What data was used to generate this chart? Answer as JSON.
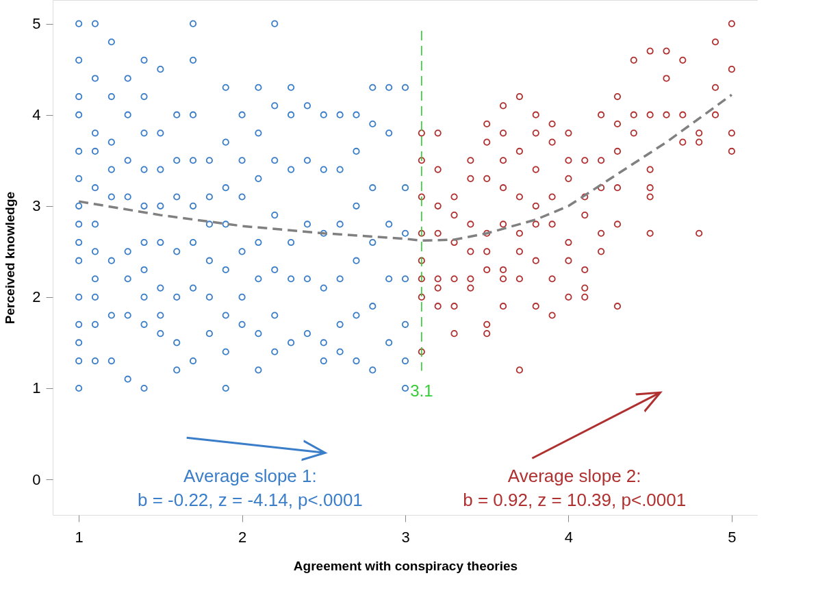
{
  "chart_data": {
    "type": "scatter",
    "xlabel": "Agreement with conspiracy theories",
    "ylabel": "Perceived knowledge",
    "xlim": [
      0.84,
      5.16
    ],
    "ylim": [
      -0.39,
      5.26
    ],
    "xticks": [
      1,
      2,
      3,
      4,
      5
    ],
    "yticks": [
      0,
      1,
      2,
      3,
      4,
      5
    ],
    "marker": "circle",
    "series": [
      {
        "color": "#3a7dc9",
        "x": [
          1,
          1,
          1,
          1,
          1,
          1,
          1,
          1,
          1,
          1,
          1,
          1,
          1,
          1,
          1,
          1.1,
          1.1,
          1.1,
          1.1,
          1.1,
          1.1,
          1.1,
          1.1,
          1.1,
          1.1,
          1.1,
          1.2,
          1.2,
          1.2,
          1.2,
          1.2,
          1.2,
          1.2,
          1.2,
          1.3,
          1.3,
          1.3,
          1.3,
          1.3,
          1.3,
          1.3,
          1.3,
          1.4,
          1.4,
          1.4,
          1.4,
          1.4,
          1.4,
          1.4,
          1.4,
          1.4,
          1.4,
          1.5,
          1.5,
          1.5,
          1.5,
          1.5,
          1.5,
          1.5,
          1.5,
          1.6,
          1.6,
          1.6,
          1.6,
          1.6,
          1.6,
          1.6,
          1.7,
          1.7,
          1.7,
          1.7,
          1.7,
          1.7,
          1.7,
          1.7,
          1.8,
          1.8,
          1.8,
          1.8,
          1.8,
          1.8,
          1.9,
          1.9,
          1.9,
          1.9,
          1.9,
          1.9,
          1.9,
          1.9,
          2,
          2,
          2,
          2,
          2,
          2,
          2.1,
          2.1,
          2.1,
          2.1,
          2.1,
          2.1,
          2.1,
          2.2,
          2.2,
          2.2,
          2.2,
          2.2,
          2.2,
          2.2,
          2.3,
          2.3,
          2.3,
          2.3,
          2.3,
          2.3,
          2.4,
          2.4,
          2.4,
          2.4,
          2.4,
          2.5,
          2.5,
          2.5,
          2.5,
          2.5,
          2.5,
          2.6,
          2.6,
          2.6,
          2.6,
          2.6,
          2.6,
          2.7,
          2.7,
          2.7,
          2.7,
          2.7,
          2.7,
          2.8,
          2.8,
          2.8,
          2.8,
          2.8,
          2.8,
          2.9,
          2.9,
          2.9,
          2.9,
          2.9,
          3,
          3,
          3,
          3,
          3,
          3,
          3
        ],
        "values": [
          5,
          4.6,
          4.2,
          4.0,
          3.6,
          3.3,
          3.0,
          2.8,
          2.6,
          2.4,
          2.0,
          1.7,
          1.5,
          1.3,
          1.0,
          5,
          4.4,
          3.8,
          3.6,
          3.2,
          2.8,
          2.5,
          2.2,
          2.0,
          1.7,
          1.3,
          4.8,
          4.2,
          3.7,
          3.4,
          3.1,
          2.4,
          1.8,
          1.3,
          4.4,
          4.0,
          3.5,
          3.1,
          2.5,
          2.2,
          1.8,
          1.1,
          4.6,
          4.2,
          3.8,
          3.4,
          3.0,
          2.6,
          2.3,
          2.0,
          1.7,
          1.0,
          4.5,
          3.8,
          3.4,
          3.0,
          2.6,
          2.1,
          1.8,
          1.6,
          4.0,
          3.5,
          3.1,
          2.5,
          2.0,
          1.5,
          1.2,
          5.0,
          4.6,
          4.0,
          3.5,
          3.0,
          2.6,
          2.1,
          1.3,
          3.5,
          3.1,
          2.8,
          2.4,
          2.0,
          1.6,
          4.3,
          3.7,
          3.2,
          2.8,
          2.3,
          1.8,
          1.4,
          1.0,
          4.0,
          3.5,
          3.1,
          2.5,
          2.0,
          1.7,
          4.3,
          3.8,
          3.3,
          2.6,
          2.2,
          1.6,
          1.2,
          5.0,
          4.1,
          3.5,
          2.9,
          2.3,
          1.8,
          1.4,
          4.3,
          4.0,
          3.4,
          2.6,
          2.2,
          1.5,
          4.1,
          3.5,
          2.8,
          2.2,
          1.6,
          4.0,
          3.4,
          2.7,
          2.1,
          1.5,
          1.3,
          4.0,
          3.4,
          2.8,
          2.2,
          1.7,
          1.4,
          4.0,
          3.6,
          3.0,
          2.4,
          1.8,
          1.3,
          4.3,
          3.9,
          3.2,
          2.6,
          1.9,
          1.2,
          4.3,
          3.8,
          2.8,
          2.2,
          1.5,
          4.3,
          3.2,
          2.7,
          2.2,
          1.7,
          1.3,
          1.0
        ]
      },
      {
        "color": "#b03030",
        "x": [
          3.1,
          3.1,
          3.1,
          3.1,
          3.1,
          3.1,
          3.1,
          3.1,
          3.2,
          3.2,
          3.2,
          3.2,
          3.2,
          3.2,
          3.2,
          3.3,
          3.3,
          3.3,
          3.3,
          3.3,
          3.3,
          3.4,
          3.4,
          3.4,
          3.4,
          3.4,
          3.4,
          3.5,
          3.5,
          3.5,
          3.5,
          3.5,
          3.5,
          3.5,
          3.5,
          3.6,
          3.6,
          3.6,
          3.6,
          3.6,
          3.6,
          3.6,
          3.6,
          3.7,
          3.7,
          3.7,
          3.7,
          3.7,
          3.7,
          3.7,
          3.8,
          3.8,
          3.8,
          3.8,
          3.8,
          3.8,
          3.8,
          3.9,
          3.9,
          3.9,
          3.9,
          3.9,
          3.9,
          4,
          4,
          4,
          4,
          4,
          4,
          4.1,
          4.1,
          4.1,
          4.1,
          4.1,
          4.1,
          4.2,
          4.2,
          4.2,
          4.2,
          4.2,
          4.3,
          4.3,
          4.3,
          4.3,
          4.3,
          4.3,
          4.4,
          4.4,
          4.4,
          4.5,
          4.5,
          4.5,
          4.5,
          4.5,
          4.5,
          4.6,
          4.6,
          4.6,
          4.7,
          4.7,
          4.7,
          4.8,
          4.8,
          4.8,
          4.9,
          4.9,
          4.9,
          5,
          5,
          5,
          5
        ],
        "values": [
          3.8,
          3.5,
          3.1,
          2.7,
          2.4,
          2.2,
          2.0,
          1.4,
          3.8,
          3.4,
          3.0,
          2.7,
          2.2,
          2.1,
          1.9,
          3.1,
          2.9,
          2.6,
          2.2,
          1.9,
          1.6,
          3.5,
          3.3,
          2.8,
          2.5,
          2.2,
          2.1,
          3.9,
          3.7,
          3.3,
          2.7,
          2.5,
          2.3,
          1.7,
          1.6,
          4.1,
          3.8,
          3.5,
          3.2,
          2.8,
          2.3,
          2.2,
          1.9,
          4.2,
          3.6,
          3.1,
          2.7,
          2.5,
          2.2,
          1.2,
          4.0,
          3.8,
          3.4,
          3.0,
          2.8,
          2.4,
          1.9,
          3.9,
          3.7,
          3.1,
          2.8,
          2.2,
          1.8,
          3.8,
          3.5,
          3.3,
          2.6,
          2.4,
          2.0,
          3.5,
          3.1,
          2.9,
          2.3,
          2.1,
          2.0,
          4.0,
          3.5,
          3.2,
          2.7,
          2.5,
          4.2,
          3.9,
          3.6,
          3.2,
          2.8,
          1.9,
          4.6,
          4.0,
          3.8,
          4.7,
          4.0,
          3.4,
          3.2,
          3.1,
          2.7,
          4.7,
          4.4,
          4.0,
          4.6,
          4.0,
          3.7,
          3.8,
          3.7,
          2.7,
          4.8,
          4.3,
          4.0,
          5.0,
          4.5,
          3.8,
          3.6
        ]
      },
      {
        "type": "line",
        "color": "#808080",
        "line_style": "dashed",
        "marker": "none",
        "x": [
          1,
          1.5,
          2,
          2.5,
          3,
          3.1,
          3.3,
          3.5,
          3.8,
          4,
          4.3,
          4.6,
          5
        ],
        "values": [
          3.05,
          2.9,
          2.78,
          2.7,
          2.64,
          2.62,
          2.63,
          2.7,
          2.85,
          3.0,
          3.35,
          3.7,
          4.22
        ]
      }
    ],
    "ref_lines": [
      {
        "axis": "x",
        "value": 3.1,
        "label": "3.1",
        "color": "#33cc33",
        "line_style": "dashed"
      }
    ],
    "annotations": [
      "Average slope 1:",
      "b = -0.22, z = -4.14, p<.0001",
      "Average slope 2:",
      "b = 0.92, z = 10.39, p<.0001"
    ]
  }
}
